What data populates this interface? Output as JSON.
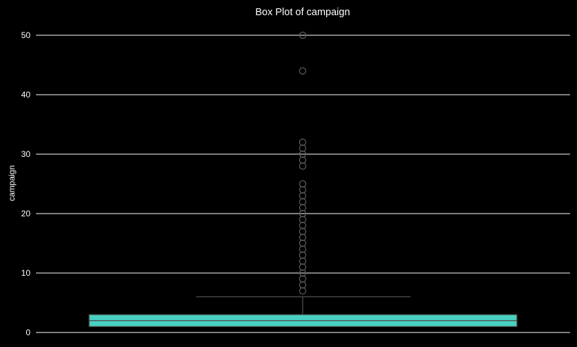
{
  "chart_data": {
    "type": "box",
    "title": "Box Plot of campaign",
    "xlabel": "",
    "ylabel": "campaign",
    "ylim": [
      -1,
      52
    ],
    "yticks": [
      0,
      10,
      20,
      30,
      40,
      50
    ],
    "grid": true,
    "box": {
      "q1": 1,
      "median": 2,
      "q3": 3,
      "whisker_low": 1,
      "whisker_high": 6
    },
    "outliers": [
      7,
      8,
      9,
      10,
      11,
      12,
      13,
      14,
      15,
      16,
      17,
      18,
      19,
      20,
      21,
      22,
      23,
      24,
      25,
      28,
      29,
      30,
      31,
      32,
      44,
      50
    ],
    "colors": {
      "background": "#000000",
      "grid": "#ffffff",
      "text": "#ffffff",
      "box_fill": "#48d1c1",
      "box_edge": "#4f4f4f",
      "whisker": "#4f4f4f",
      "outlier_edge": "#5a5a5a"
    }
  }
}
